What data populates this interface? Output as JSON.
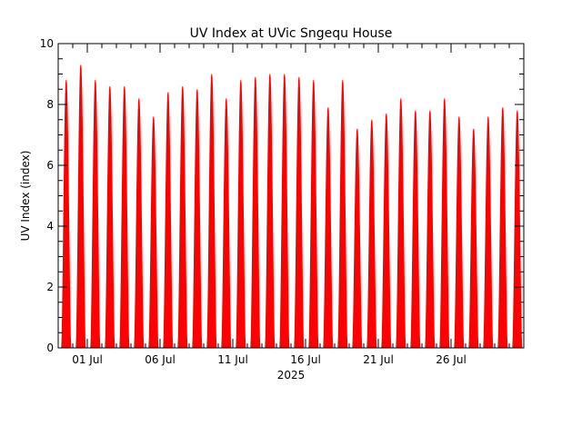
{
  "chart_data": {
    "type": "area",
    "title": "UV Index at UVic Sngequ House",
    "ylabel": "UV Index (index)",
    "xlabel": "2025",
    "ylim": [
      0,
      10
    ],
    "y_ticks": [
      0,
      2,
      4,
      6,
      8,
      10
    ],
    "x_range": [
      "2025-06-29",
      "2025-07-31"
    ],
    "x_ticks": [
      {
        "date": "2025-07-01",
        "label": "01 Jul"
      },
      {
        "date": "2025-07-06",
        "label": "06 Jul"
      },
      {
        "date": "2025-07-11",
        "label": "11 Jul"
      },
      {
        "date": "2025-07-16",
        "label": "16 Jul"
      },
      {
        "date": "2025-07-21",
        "label": "21 Jul"
      },
      {
        "date": "2025-07-26",
        "label": "26 Jul"
      }
    ],
    "series": [
      {
        "color": "#ff0000",
        "x": [
          "2025-06-29",
          "2025-06-30",
          "2025-07-01",
          "2025-07-02",
          "2025-07-03",
          "2025-07-04",
          "2025-07-05",
          "2025-07-06",
          "2025-07-07",
          "2025-07-08",
          "2025-07-09",
          "2025-07-10",
          "2025-07-11",
          "2025-07-12",
          "2025-07-13",
          "2025-07-14",
          "2025-07-15",
          "2025-07-16",
          "2025-07-17",
          "2025-07-18",
          "2025-07-19",
          "2025-07-20",
          "2025-07-21",
          "2025-07-22",
          "2025-07-23",
          "2025-07-24",
          "2025-07-25",
          "2025-07-26",
          "2025-07-27",
          "2025-07-28",
          "2025-07-29",
          "2025-07-30"
        ],
        "values": [
          8.8,
          9.3,
          8.8,
          8.6,
          8.6,
          8.2,
          7.6,
          8.4,
          8.6,
          8.5,
          9.0,
          8.2,
          8.8,
          8.9,
          9.0,
          9.0,
          8.9,
          8.8,
          7.9,
          8.8,
          7.2,
          7.5,
          7.7,
          8.2,
          7.8,
          7.8,
          8.2,
          7.6,
          7.2,
          7.6,
          7.9,
          7.8
        ]
      }
    ]
  }
}
